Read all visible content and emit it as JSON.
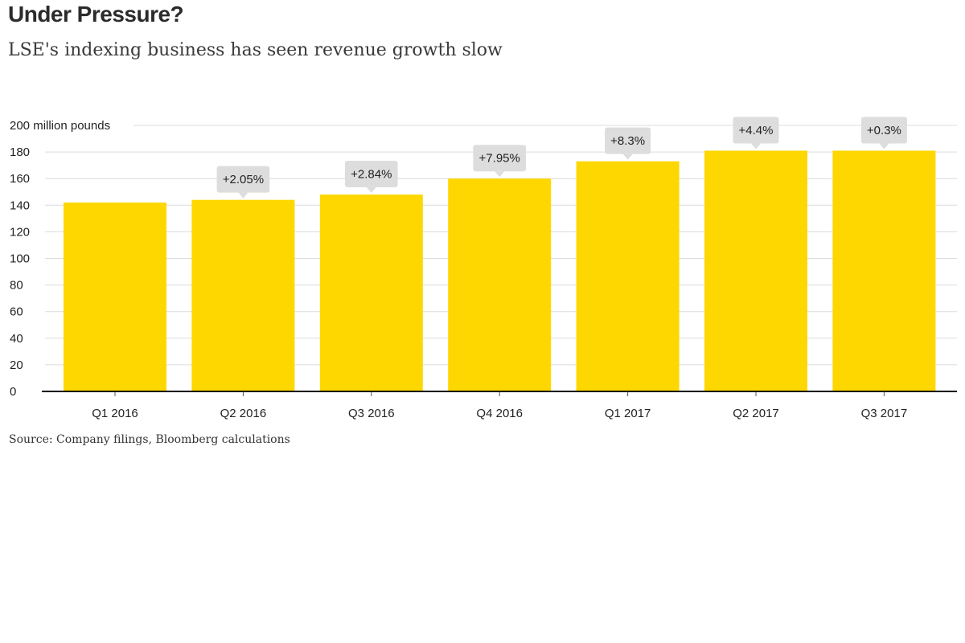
{
  "header": {
    "title": "Under Pressure?",
    "subtitle": "LSE's indexing business has seen revenue growth slow"
  },
  "footer": {
    "source": "Source: Company filings, Bloomberg calculations"
  },
  "colors": {
    "bar": "#fed700",
    "annotation_box": "#dddddd",
    "gridline": "#dcdcdc",
    "axis": "#000000"
  },
  "chart_data": {
    "type": "bar",
    "title": "Under Pressure?",
    "subtitle": "LSE's indexing business has seen revenue growth slow",
    "xlabel": "",
    "ylabel": "",
    "y_unit_label": "200 million pounds",
    "categories": [
      "Q1 2016",
      "Q2 2016",
      "Q3 2016",
      "Q4 2016",
      "Q1 2017",
      "Q2 2017",
      "Q3 2017"
    ],
    "values": [
      142,
      144,
      148,
      160,
      173,
      181,
      181
    ],
    "annotations": [
      "",
      "+2.05%",
      "+2.84%",
      "+7.95%",
      "+8.3%",
      "+4.4%",
      "+0.3%"
    ],
    "ylim": [
      0,
      200
    ],
    "yticks": [
      0,
      20,
      40,
      60,
      80,
      100,
      120,
      140,
      160,
      180,
      200
    ],
    "grid": true,
    "legend": "none"
  }
}
